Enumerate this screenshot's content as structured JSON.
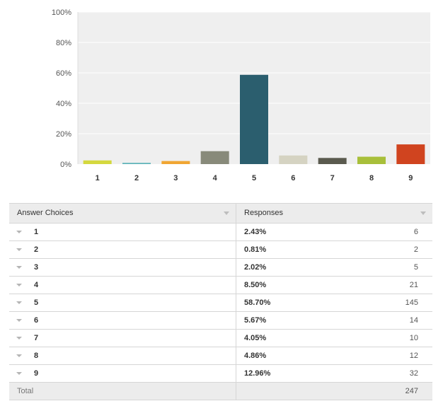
{
  "chart_data": {
    "type": "bar",
    "categories": [
      "1",
      "2",
      "3",
      "4",
      "5",
      "6",
      "7",
      "8",
      "9"
    ],
    "values": [
      2.43,
      0.81,
      2.02,
      8.5,
      58.7,
      5.67,
      4.05,
      4.86,
      12.96
    ],
    "colors": [
      "#d4d83e",
      "#5fb4b9",
      "#f0a633",
      "#888a7a",
      "#2b5e6e",
      "#d5d3c2",
      "#5a5a4e",
      "#a8bf3a",
      "#d0441f"
    ],
    "ylim": [
      0,
      100
    ],
    "yticks": [
      "0%",
      "20%",
      "40%",
      "60%",
      "80%",
      "100%"
    ],
    "ytick_values": [
      0,
      20,
      40,
      60,
      80,
      100
    ],
    "grid": true,
    "title": "",
    "xlabel": "",
    "ylabel": ""
  },
  "table": {
    "headers": {
      "choice": "Answer Choices",
      "responses": "Responses"
    },
    "rows": [
      {
        "choice": "1",
        "percent": "2.43%",
        "count": "6"
      },
      {
        "choice": "2",
        "percent": "0.81%",
        "count": "2"
      },
      {
        "choice": "3",
        "percent": "2.02%",
        "count": "5"
      },
      {
        "choice": "4",
        "percent": "8.50%",
        "count": "21"
      },
      {
        "choice": "5",
        "percent": "58.70%",
        "count": "145"
      },
      {
        "choice": "6",
        "percent": "5.67%",
        "count": "14"
      },
      {
        "choice": "7",
        "percent": "4.05%",
        "count": "10"
      },
      {
        "choice": "8",
        "percent": "4.86%",
        "count": "12"
      },
      {
        "choice": "9",
        "percent": "12.96%",
        "count": "32"
      }
    ],
    "total_label": "Total",
    "total_count": "247"
  }
}
